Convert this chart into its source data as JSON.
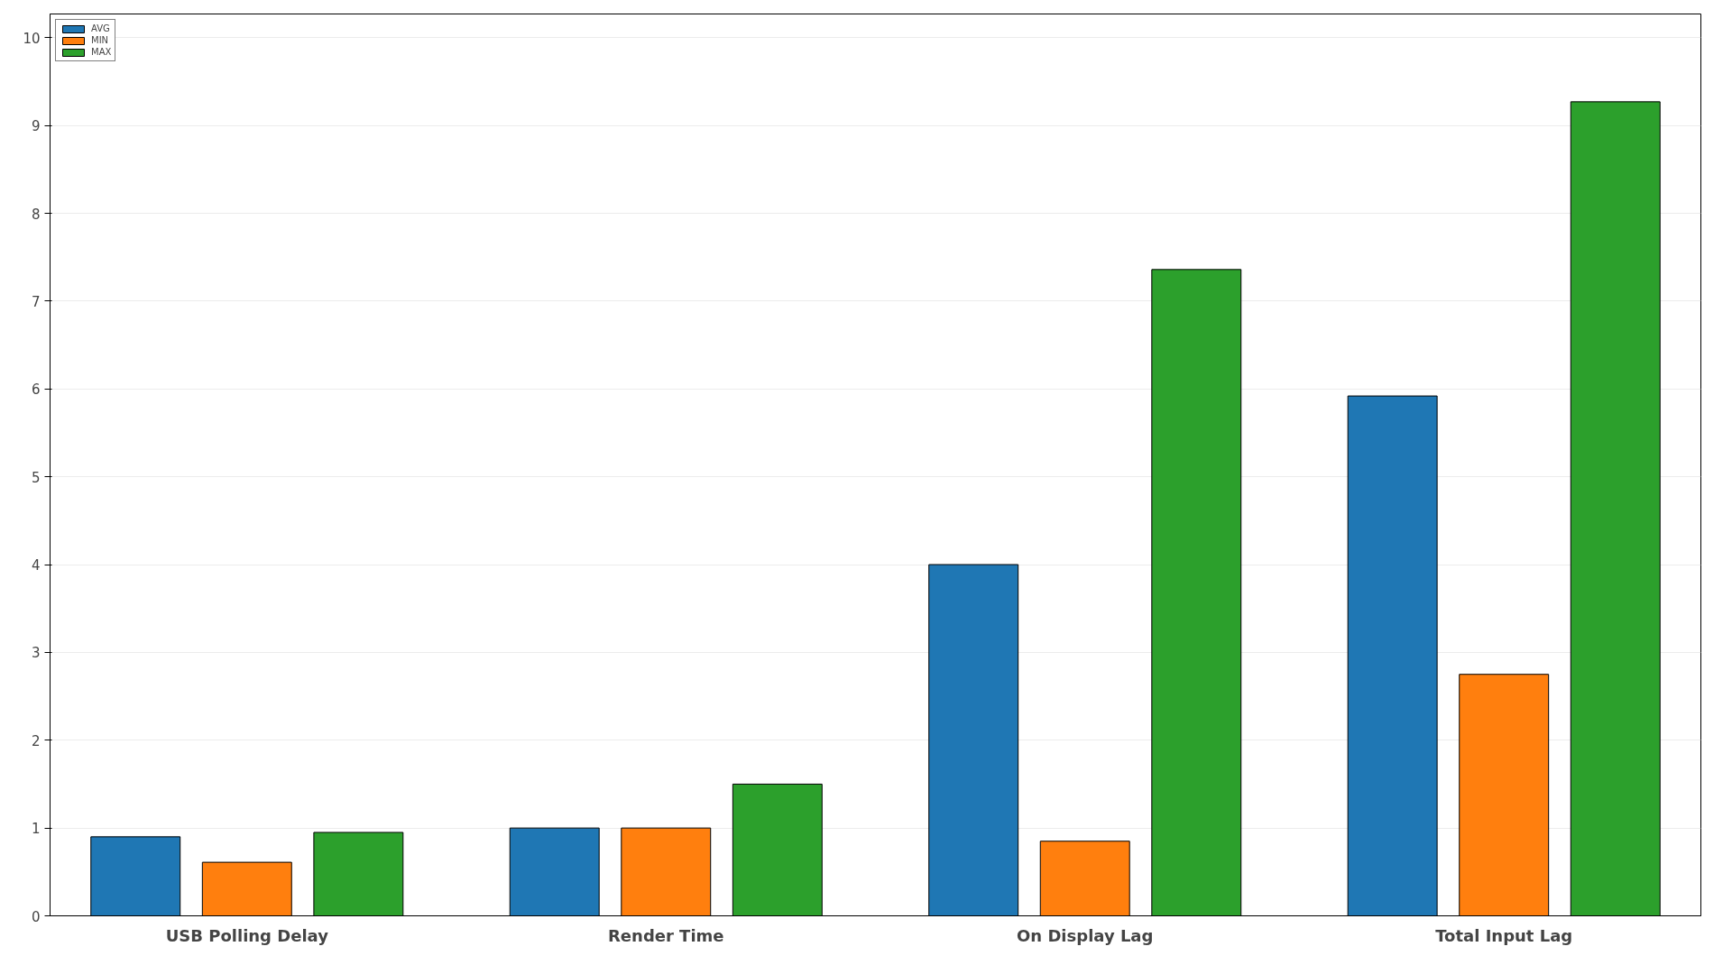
{
  "chart_data": {
    "type": "bar",
    "categories": [
      "USB Polling Delay",
      "Render Time",
      "On Display Lag",
      "Total Input Lag"
    ],
    "series": [
      {
        "name": "AVG",
        "color": "#1f77b4",
        "values": [
          0.9,
          1.0,
          4.0,
          5.92
        ]
      },
      {
        "name": "MIN",
        "color": "#ff7f0e",
        "values": [
          0.61,
          1.0,
          0.85,
          2.75
        ]
      },
      {
        "name": "MAX",
        "color": "#2ca02c",
        "values": [
          0.95,
          1.5,
          7.36,
          9.27
        ]
      }
    ],
    "ylim": [
      0,
      10.27
    ],
    "yticks": [
      0,
      1,
      2,
      3,
      4,
      5,
      6,
      7,
      8,
      9,
      10
    ],
    "grid": "y",
    "legend": "top left"
  }
}
